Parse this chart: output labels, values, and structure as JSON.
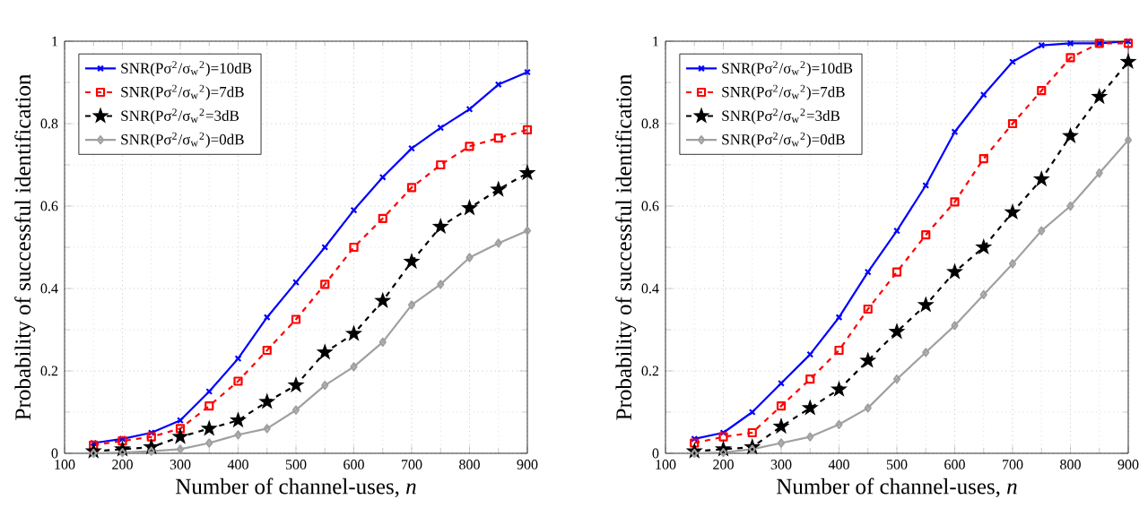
{
  "chart_data": [
    {
      "type": "line",
      "xlabel": "Number of channel-uses, *n*",
      "ylabel": "Probability of successful identification",
      "x": [
        150,
        200,
        250,
        300,
        350,
        400,
        450,
        500,
        550,
        600,
        650,
        700,
        750,
        800,
        850,
        900
      ],
      "xlim": [
        100,
        900
      ],
      "ylim": [
        0,
        1
      ],
      "xticks": [
        100,
        200,
        300,
        400,
        500,
        600,
        700,
        800,
        900
      ],
      "yticks": [
        0,
        0.2,
        0.4,
        0.6,
        0.8,
        1
      ],
      "grid": true,
      "legend": "top left",
      "series": [
        {
          "name": "SNR(Pσ$^{2}$/σ$_{w}$$^{2}$)=10dB",
          "color": "#0000ff",
          "marker": "cross",
          "line_style": "solid",
          "values": [
            0.025,
            0.035,
            0.05,
            0.08,
            0.15,
            0.23,
            0.33,
            0.415,
            0.5,
            0.59,
            0.67,
            0.74,
            0.79,
            0.835,
            0.895,
            0.925
          ]
        },
        {
          "name": "SNR(Pσ$^{2}$/σ$_{w}$$^{2}$)=7dB",
          "color": "#ff0000",
          "marker": "square",
          "line_style": "dashed",
          "values": [
            0.02,
            0.03,
            0.04,
            0.06,
            0.115,
            0.175,
            0.25,
            0.325,
            0.41,
            0.5,
            0.57,
            0.645,
            0.7,
            0.745,
            0.765,
            0.785
          ]
        },
        {
          "name": "SNR(Pσ$^{2}$/σ$_{w}$$^{2}$=3dB",
          "color": "#000000",
          "marker": "star",
          "line_style": "dashed",
          "values": [
            0.005,
            0.01,
            0.015,
            0.04,
            0.06,
            0.08,
            0.125,
            0.165,
            0.245,
            0.29,
            0.37,
            0.465,
            0.55,
            0.595,
            0.64,
            0.68
          ]
        },
        {
          "name": "SNR(Pσ$^{2}$/σ$_{w}$$^{2}$)=0dB",
          "color": "#a0a0a0",
          "marker": "diamond",
          "line_style": "solid",
          "values": [
            0.0,
            0.002,
            0.005,
            0.01,
            0.025,
            0.045,
            0.06,
            0.105,
            0.165,
            0.21,
            0.27,
            0.36,
            0.41,
            0.475,
            0.51,
            0.54
          ]
        }
      ]
    },
    {
      "type": "line",
      "xlabel": "Number of channel-uses, *n*",
      "ylabel": "Probability of successful identification",
      "x": [
        150,
        200,
        250,
        300,
        350,
        400,
        450,
        500,
        550,
        600,
        650,
        700,
        750,
        800,
        850,
        900
      ],
      "xlim": [
        100,
        900
      ],
      "ylim": [
        0,
        1
      ],
      "xticks": [
        100,
        200,
        300,
        400,
        500,
        600,
        700,
        800,
        900
      ],
      "yticks": [
        0,
        0.2,
        0.4,
        0.6,
        0.8,
        1
      ],
      "grid": true,
      "legend": "top left",
      "series": [
        {
          "name": "SNR(Pσ$^{2}$/σ$_{w}$$^{2}$)=10dB",
          "color": "#0000ff",
          "marker": "cross",
          "line_style": "solid",
          "values": [
            0.035,
            0.05,
            0.1,
            0.17,
            0.24,
            0.33,
            0.44,
            0.54,
            0.65,
            0.78,
            0.87,
            0.95,
            0.99,
            0.995,
            0.995,
            1.0
          ]
        },
        {
          "name": "SNR(Pσ$^{2}$/σ$_{w}$$^{2}$)=7dB",
          "color": "#ff0000",
          "marker": "square",
          "line_style": "dashed",
          "values": [
            0.025,
            0.04,
            0.05,
            0.115,
            0.18,
            0.25,
            0.35,
            0.44,
            0.53,
            0.61,
            0.715,
            0.8,
            0.88,
            0.96,
            0.995,
            0.995
          ]
        },
        {
          "name": "SNR(Pσ$^{2}$/σ$_{w}$$^{2}$=3dB",
          "color": "#000000",
          "marker": "star",
          "line_style": "dashed",
          "values": [
            0.005,
            0.01,
            0.015,
            0.065,
            0.11,
            0.155,
            0.225,
            0.295,
            0.36,
            0.44,
            0.5,
            0.585,
            0.665,
            0.77,
            0.865,
            0.95
          ]
        },
        {
          "name": "SNR(Pσ$^{2}$/σ$_{w}$$^{2}$)=0dB",
          "color": "#a0a0a0",
          "marker": "diamond",
          "line_style": "solid",
          "values": [
            0.0,
            0.002,
            0.01,
            0.025,
            0.04,
            0.07,
            0.11,
            0.18,
            0.245,
            0.31,
            0.385,
            0.46,
            0.54,
            0.6,
            0.68,
            0.76
          ]
        }
      ]
    }
  ]
}
